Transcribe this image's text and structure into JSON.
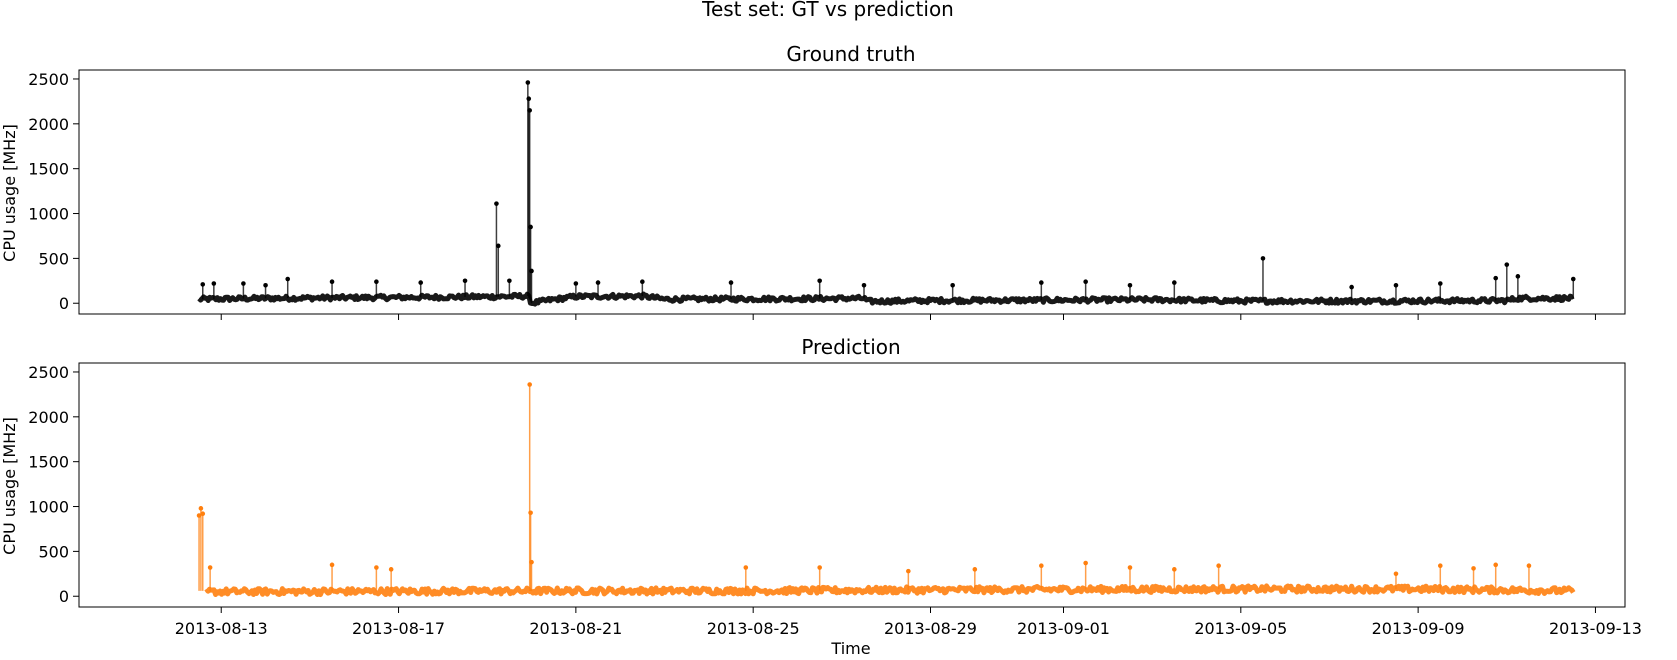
{
  "colors": {
    "ground_truth": "#000000",
    "prediction": "#ff7f0e"
  },
  "chart_data": {
    "type": "line",
    "title": "Test set: GT vs prediction",
    "xlabel": "Time",
    "x_ticks": [
      "2013-08-13",
      "2013-08-17",
      "2013-08-21",
      "2013-08-25",
      "2013-08-29",
      "2013-09-01",
      "2013-09-05",
      "2013-09-09",
      "2013-09-13"
    ],
    "xlim": [
      "2013-08-09T19:00",
      "2013-09-13T16:00"
    ],
    "panels": [
      {
        "title": "Ground truth",
        "ylabel": "CPU usage [MHz]",
        "ylim": [
          -120,
          2600
        ],
        "y_ticks": [
          0,
          500,
          1000,
          1500,
          2000,
          2500
        ],
        "series": [
          {
            "color": "ground_truth",
            "baseline": [
              [
                "2013-08-12T12:00",
                45
              ],
              [
                "2013-08-14T00:00",
                55
              ],
              [
                "2013-08-16T00:00",
                62
              ],
              [
                "2013-08-18T00:00",
                68
              ],
              [
                "2013-08-19T12:00",
                75
              ],
              [
                "2013-08-19T22:00",
                80
              ],
              [
                "2013-08-20T00:00",
                0
              ],
              [
                "2013-08-20T08:00",
                30
              ],
              [
                "2013-08-21T00:00",
                75
              ],
              [
                "2013-08-22T12:00",
                80
              ],
              [
                "2013-08-23T00:00",
                45
              ],
              [
                "2013-08-26T00:00",
                50
              ],
              [
                "2013-08-27T12:00",
                55
              ],
              [
                "2013-08-27T14:00",
                20
              ],
              [
                "2013-08-29T00:00",
                30
              ],
              [
                "2013-09-01T00:00",
                35
              ],
              [
                "2013-09-03T00:00",
                40
              ],
              [
                "2013-09-05T00:00",
                25
              ],
              [
                "2013-09-08T00:00",
                25
              ],
              [
                "2013-09-11T00:00",
                30
              ],
              [
                "2013-09-11T06:00",
                55
              ],
              [
                "2013-09-12T12:00",
                55
              ]
            ],
            "spikes": [
              [
                "2013-08-12T14:00",
                210
              ],
              [
                "2013-08-12T20:00",
                220
              ],
              [
                "2013-08-13T12:00",
                220
              ],
              [
                "2013-08-14T00:00",
                200
              ],
              [
                "2013-08-14T12:00",
                270
              ],
              [
                "2013-08-15T12:00",
                240
              ],
              [
                "2013-08-16T12:00",
                240
              ],
              [
                "2013-08-17T12:00",
                230
              ],
              [
                "2013-08-18T12:00",
                250
              ],
              [
                "2013-08-19T05:00",
                1110
              ],
              [
                "2013-08-19T06:00",
                640
              ],
              [
                "2013-08-19T12:00",
                250
              ],
              [
                "2013-08-19T22:00",
                2460
              ],
              [
                "2013-08-19T22:30",
                2280
              ],
              [
                "2013-08-19T23:00",
                2150
              ],
              [
                "2013-08-19T23:30",
                850
              ],
              [
                "2013-08-20T00:00",
                360
              ],
              [
                "2013-08-21T00:00",
                220
              ],
              [
                "2013-08-21T12:00",
                230
              ],
              [
                "2013-08-22T12:00",
                240
              ],
              [
                "2013-08-24T12:00",
                230
              ],
              [
                "2013-08-26T12:00",
                250
              ],
              [
                "2013-08-27T12:00",
                200
              ],
              [
                "2013-08-29T12:00",
                200
              ],
              [
                "2013-08-31T12:00",
                230
              ],
              [
                "2013-09-01T12:00",
                240
              ],
              [
                "2013-09-02T12:00",
                200
              ],
              [
                "2013-09-03T12:00",
                230
              ],
              [
                "2013-09-05T12:00",
                500
              ],
              [
                "2013-09-07T12:00",
                180
              ],
              [
                "2013-09-08T12:00",
                200
              ],
              [
                "2013-09-09T12:00",
                220
              ],
              [
                "2013-09-10T18:00",
                280
              ],
              [
                "2013-09-11T00:00",
                430
              ],
              [
                "2013-09-11T06:00",
                300
              ],
              [
                "2013-09-12T12:00",
                270
              ]
            ]
          }
        ]
      },
      {
        "title": "Prediction",
        "ylabel": "CPU usage [MHz]",
        "ylim": [
          -120,
          2600
        ],
        "y_ticks": [
          0,
          500,
          1000,
          1500,
          2000,
          2500
        ],
        "series": [
          {
            "color": "prediction",
            "baseline": [
              [
                "2013-08-12T16:00",
                50
              ],
              [
                "2013-08-17T00:00",
                55
              ],
              [
                "2013-08-21T00:00",
                60
              ],
              [
                "2013-08-25T00:00",
                60
              ],
              [
                "2013-08-29T00:00",
                70
              ],
              [
                "2013-09-01T00:00",
                75
              ],
              [
                "2013-09-05T00:00",
                80
              ],
              [
                "2013-09-09T00:00",
                80
              ],
              [
                "2013-09-12T12:00",
                60
              ]
            ],
            "spikes": [
              [
                "2013-08-12T12:00",
                900
              ],
              [
                "2013-08-12T13:00",
                980
              ],
              [
                "2013-08-12T14:00",
                920
              ],
              [
                "2013-08-12T18:00",
                320
              ],
              [
                "2013-08-15T12:00",
                350
              ],
              [
                "2013-08-16T12:00",
                320
              ],
              [
                "2013-08-16T20:00",
                300
              ],
              [
                "2013-08-19T23:00",
                2360
              ],
              [
                "2013-08-19T23:30",
                930
              ],
              [
                "2013-08-20T00:00",
                380
              ],
              [
                "2013-08-24T20:00",
                320
              ],
              [
                "2013-08-26T12:00",
                320
              ],
              [
                "2013-08-28T12:00",
                280
              ],
              [
                "2013-08-30T00:00",
                300
              ],
              [
                "2013-08-31T12:00",
                340
              ],
              [
                "2013-09-01T12:00",
                370
              ],
              [
                "2013-09-02T12:00",
                320
              ],
              [
                "2013-09-03T12:00",
                300
              ],
              [
                "2013-09-04T12:00",
                340
              ],
              [
                "2013-09-08T12:00",
                250
              ],
              [
                "2013-09-09T12:00",
                340
              ],
              [
                "2013-09-10T06:00",
                310
              ],
              [
                "2013-09-10T18:00",
                350
              ],
              [
                "2013-09-11T12:00",
                340
              ]
            ]
          }
        ]
      }
    ],
    "grid": false,
    "legend": "none"
  }
}
